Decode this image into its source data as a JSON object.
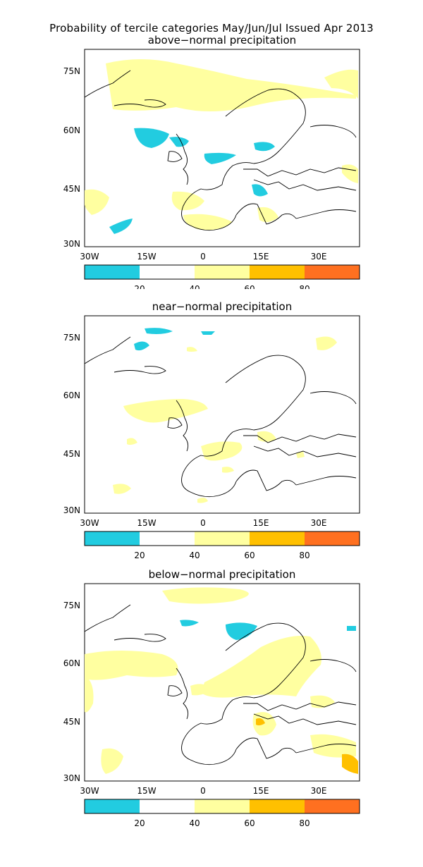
{
  "figure": {
    "title": "Probability of tercile categories May/Jun/Jul Issued Apr 2013"
  },
  "panels": [
    {
      "id": "above",
      "title": "above−normal precipitation"
    },
    {
      "id": "near",
      "title": "near−normal precipitation"
    },
    {
      "id": "below",
      "title": "below−normal precipitation"
    }
  ],
  "axes": {
    "lat_ticks": [
      "75N",
      "60N",
      "45N",
      "30N"
    ],
    "lon_ticks": [
      "30W",
      "15W",
      "0",
      "15E",
      "30E"
    ]
  },
  "colorbar": {
    "ticks": [
      "20",
      "40",
      "60",
      "80"
    ],
    "colors": [
      "#22cce0",
      "#ffffff",
      "#ffffa0",
      "#ffc000",
      "#ff7020"
    ]
  },
  "palette": {
    "light_blue": "#22cce0",
    "pale_yellow": "#ffffa0",
    "orange": "#ffc000",
    "dark_orange": "#ff7020"
  }
}
